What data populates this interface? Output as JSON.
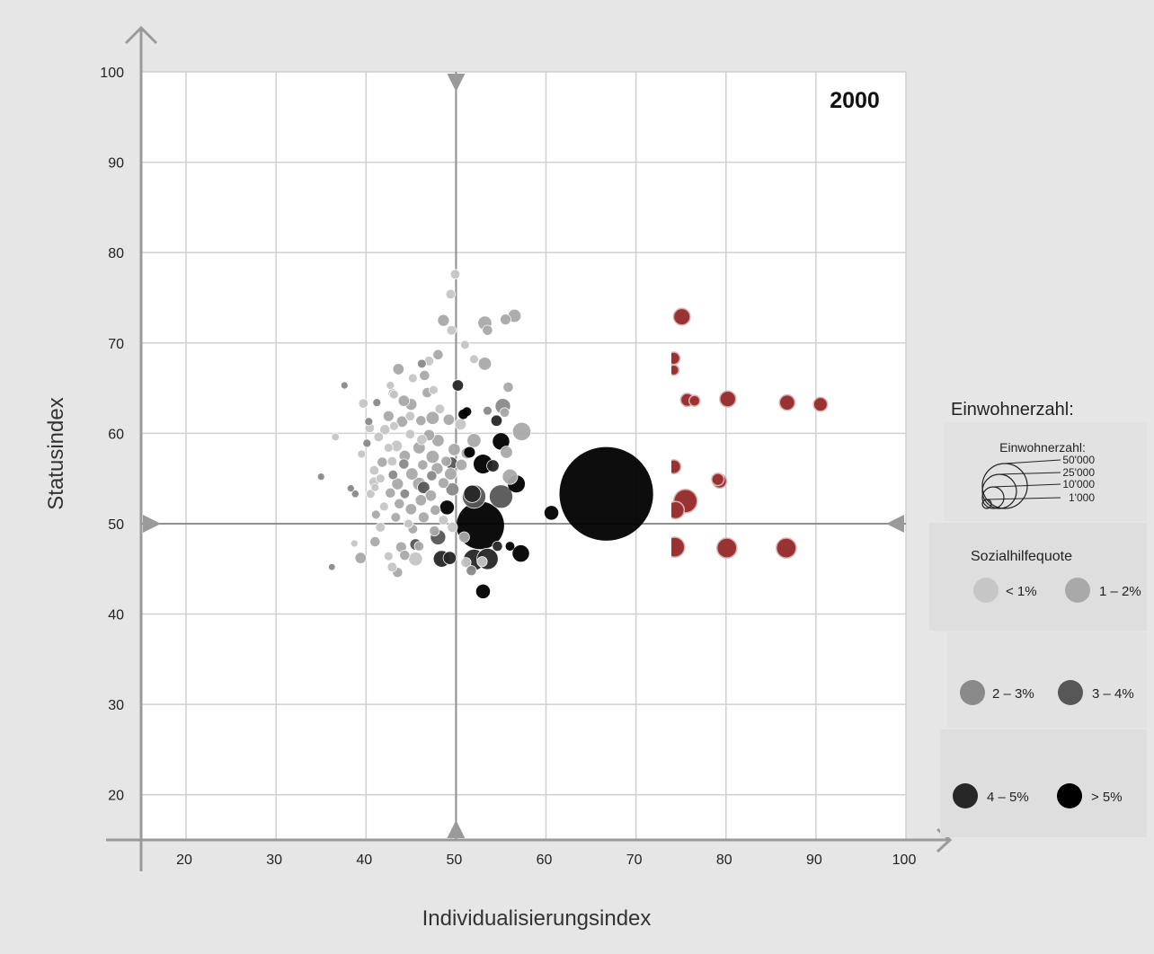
{
  "chart_data": {
    "type": "scatter",
    "title": "2000",
    "xlabel": "Individualisierungsindex",
    "ylabel": "Statusindex",
    "xlim": [
      15,
      100
    ],
    "ylim": [
      15,
      100
    ],
    "x_ticks": [
      20,
      30,
      40,
      50,
      60,
      70,
      80,
      90,
      100
    ],
    "y_ticks": [
      20,
      30,
      40,
      50,
      60,
      70,
      80,
      90,
      100
    ],
    "grid": true,
    "reference_lines": {
      "x": 50,
      "y": 50
    },
    "colors": {
      "lt1": "#c6c6c6",
      "p1_2": "#a9a9a9",
      "p2_3": "#8a8a8a",
      "p3_4": "#575757",
      "p4_5": "#272727",
      "gt5": "#000000",
      "red": "#993333"
    },
    "legend": {
      "outer_title": "Einwohnerzahl:",
      "size_title": "Einwohnerzahl:",
      "size_values": [
        "50'000",
        "25'000",
        "10'000",
        "1'000"
      ],
      "color_title": "Sozialhilfequote",
      "color_items": [
        {
          "label": "< 1%",
          "key": "lt1"
        },
        {
          "label": "1 – 2%",
          "key": "p1_2"
        },
        {
          "label": "2 – 3%",
          "key": "p2_3"
        },
        {
          "label": "3 – 4%",
          "key": "p3_4"
        },
        {
          "label": "4 – 5%",
          "key": "p4_5"
        },
        {
          "label": "> 5%",
          "key": "gt5"
        }
      ]
    },
    "points": [
      {
        "x": 66.7,
        "y": 53.3,
        "size": 50000,
        "cat": "gt5"
      },
      {
        "x": 52.7,
        "y": 49.8,
        "size": 12000,
        "cat": "gt5"
      },
      {
        "x": 55,
        "y": 53,
        "size": 2500,
        "cat": "p3_4"
      },
      {
        "x": 52,
        "y": 53,
        "size": 2500,
        "cat": "p3_4"
      },
      {
        "x": 53,
        "y": 56.6,
        "size": 1500,
        "cat": "gt5"
      },
      {
        "x": 56.7,
        "y": 54.4,
        "size": 1200,
        "cat": "gt5"
      },
      {
        "x": 55,
        "y": 59.1,
        "size": 1100,
        "cat": "gt5"
      },
      {
        "x": 52,
        "y": 46,
        "size": 2000,
        "cat": "p4_5"
      },
      {
        "x": 53.5,
        "y": 46.1,
        "size": 2000,
        "cat": "p4_5"
      },
      {
        "x": 57.2,
        "y": 46.7,
        "size": 1100,
        "cat": "gt5"
      },
      {
        "x": 53,
        "y": 42.5,
        "size": 700,
        "cat": "gt5"
      },
      {
        "x": 60.6,
        "y": 51.2,
        "size": 700,
        "cat": "gt5"
      },
      {
        "x": 49,
        "y": 51.8,
        "size": 700,
        "cat": "gt5"
      },
      {
        "x": 48.4,
        "y": 46.1,
        "size": 1100,
        "cat": "p4_5"
      },
      {
        "x": 48,
        "y": 48.5,
        "size": 900,
        "cat": "p3_4"
      },
      {
        "x": 49.3,
        "y": 46.2,
        "size": 600,
        "cat": "p4_5"
      },
      {
        "x": 54.1,
        "y": 56.4,
        "size": 500,
        "cat": "p4_5"
      },
      {
        "x": 51.8,
        "y": 53.3,
        "size": 1200,
        "cat": "p4_5"
      },
      {
        "x": 54.5,
        "y": 61.4,
        "size": 400,
        "cat": "p4_5"
      },
      {
        "x": 50.2,
        "y": 65.3,
        "size": 400,
        "cat": "p4_5"
      },
      {
        "x": 50.8,
        "y": 62.1,
        "size": 250,
        "cat": "gt5"
      },
      {
        "x": 51.2,
        "y": 62.4,
        "size": 200,
        "cat": "gt5"
      },
      {
        "x": 49.5,
        "y": 56.7,
        "size": 500,
        "cat": "p3_4"
      },
      {
        "x": 46.4,
        "y": 54,
        "size": 500,
        "cat": "p3_4"
      },
      {
        "x": 45.5,
        "y": 47.7,
        "size": 400,
        "cat": "p3_4"
      },
      {
        "x": 49.6,
        "y": 53.8,
        "size": 600,
        "cat": "p2_3"
      },
      {
        "x": 51.5,
        "y": 57.9,
        "size": 350,
        "cat": "gt5"
      },
      {
        "x": 54.6,
        "y": 47.5,
        "size": 300,
        "cat": "p4_5"
      },
      {
        "x": 56,
        "y": 47.5,
        "size": 200,
        "cat": "gt5"
      },
      {
        "x": 57.3,
        "y": 60.2,
        "size": 1400,
        "cat": "p1_2"
      },
      {
        "x": 55.2,
        "y": 63,
        "size": 900,
        "cat": "p2_3"
      },
      {
        "x": 56.5,
        "y": 73,
        "size": 600,
        "cat": "p1_2"
      },
      {
        "x": 55.5,
        "y": 72.6,
        "size": 350,
        "cat": "p1_2"
      },
      {
        "x": 53.2,
        "y": 72.2,
        "size": 700,
        "cat": "p1_2"
      },
      {
        "x": 53.5,
        "y": 71.4,
        "size": 300,
        "cat": "p1_2"
      },
      {
        "x": 53.2,
        "y": 67.7,
        "size": 600,
        "cat": "p1_2"
      },
      {
        "x": 52,
        "y": 68.2,
        "size": 200,
        "cat": "lt1"
      },
      {
        "x": 49.9,
        "y": 77.6,
        "size": 250,
        "cat": "lt1"
      },
      {
        "x": 49.4,
        "y": 75.4,
        "size": 250,
        "cat": "lt1"
      },
      {
        "x": 48.6,
        "y": 72.5,
        "size": 450,
        "cat": "p1_2"
      },
      {
        "x": 49.5,
        "y": 71.4,
        "size": 250,
        "cat": "lt1"
      },
      {
        "x": 51,
        "y": 69.8,
        "size": 200,
        "cat": "lt1"
      },
      {
        "x": 48,
        "y": 68.7,
        "size": 300,
        "cat": "p1_2"
      },
      {
        "x": 47,
        "y": 68,
        "size": 250,
        "cat": "lt1"
      },
      {
        "x": 46.2,
        "y": 67.7,
        "size": 200,
        "cat": "p2_3"
      },
      {
        "x": 43.6,
        "y": 67.1,
        "size": 400,
        "cat": "p1_2"
      },
      {
        "x": 46.5,
        "y": 66.4,
        "size": 300,
        "cat": "p1_2"
      },
      {
        "x": 45.2,
        "y": 66.1,
        "size": 200,
        "cat": "lt1"
      },
      {
        "x": 42.7,
        "y": 65.3,
        "size": 150,
        "cat": "lt1"
      },
      {
        "x": 43.1,
        "y": 64.3,
        "size": 200,
        "cat": "lt1"
      },
      {
        "x": 47.5,
        "y": 64.8,
        "size": 200,
        "cat": "lt1"
      },
      {
        "x": 46.8,
        "y": 64.5,
        "size": 300,
        "cat": "p1_2"
      },
      {
        "x": 43,
        "y": 64.4,
        "size": 250,
        "cat": "p1_2"
      },
      {
        "x": 44.2,
        "y": 63.6,
        "size": 400,
        "cat": "p1_2"
      },
      {
        "x": 37.6,
        "y": 65.3,
        "size": 100,
        "cat": "p2_3"
      },
      {
        "x": 41.2,
        "y": 63.4,
        "size": 150,
        "cat": "p2_3"
      },
      {
        "x": 39.7,
        "y": 63.3,
        "size": 250,
        "cat": "lt1"
      },
      {
        "x": 45,
        "y": 63.2,
        "size": 450,
        "cat": "p1_2"
      },
      {
        "x": 48.2,
        "y": 62.7,
        "size": 250,
        "cat": "lt1"
      },
      {
        "x": 55.4,
        "y": 62.3,
        "size": 250,
        "cat": "p1_2"
      },
      {
        "x": 55.8,
        "y": 65.1,
        "size": 300,
        "cat": "p1_2"
      },
      {
        "x": 42.5,
        "y": 61.9,
        "size": 350,
        "cat": "p1_2"
      },
      {
        "x": 44.9,
        "y": 61.9,
        "size": 250,
        "cat": "lt1"
      },
      {
        "x": 47.4,
        "y": 61.7,
        "size": 600,
        "cat": "p1_2"
      },
      {
        "x": 46.1,
        "y": 61.4,
        "size": 300,
        "cat": "p1_2"
      },
      {
        "x": 44,
        "y": 61.3,
        "size": 400,
        "cat": "p1_2"
      },
      {
        "x": 49.2,
        "y": 61.5,
        "size": 400,
        "cat": "p1_2"
      },
      {
        "x": 40.3,
        "y": 61.3,
        "size": 150,
        "cat": "p2_3"
      },
      {
        "x": 43.1,
        "y": 60.8,
        "size": 200,
        "cat": "lt1"
      },
      {
        "x": 50.5,
        "y": 61,
        "size": 400,
        "cat": "lt1"
      },
      {
        "x": 40.4,
        "y": 60.6,
        "size": 250,
        "cat": "lt1"
      },
      {
        "x": 42.1,
        "y": 60.4,
        "size": 300,
        "cat": "lt1"
      },
      {
        "x": 44.9,
        "y": 59.9,
        "size": 250,
        "cat": "lt1"
      },
      {
        "x": 47,
        "y": 59.8,
        "size": 400,
        "cat": "p1_2"
      },
      {
        "x": 41.4,
        "y": 59.6,
        "size": 250,
        "cat": "lt1"
      },
      {
        "x": 36.6,
        "y": 59.6,
        "size": 120,
        "cat": "lt1"
      },
      {
        "x": 46.2,
        "y": 59.3,
        "size": 300,
        "cat": "lt1"
      },
      {
        "x": 48,
        "y": 59.2,
        "size": 500,
        "cat": "p1_2"
      },
      {
        "x": 52,
        "y": 59.2,
        "size": 700,
        "cat": "p1_2"
      },
      {
        "x": 40.1,
        "y": 58.9,
        "size": 150,
        "cat": "p2_3"
      },
      {
        "x": 43.4,
        "y": 58.6,
        "size": 400,
        "cat": "lt1"
      },
      {
        "x": 42.5,
        "y": 58.4,
        "size": 200,
        "cat": "lt1"
      },
      {
        "x": 45.9,
        "y": 58.4,
        "size": 500,
        "cat": "p1_2"
      },
      {
        "x": 49.8,
        "y": 58.2,
        "size": 500,
        "cat": "p1_2"
      },
      {
        "x": 51.2,
        "y": 57.8,
        "size": 400,
        "cat": "p1_2"
      },
      {
        "x": 55.6,
        "y": 57.9,
        "size": 500,
        "cat": "p1_2"
      },
      {
        "x": 39.5,
        "y": 57.7,
        "size": 150,
        "cat": "lt1"
      },
      {
        "x": 44.3,
        "y": 57.5,
        "size": 400,
        "cat": "p1_2"
      },
      {
        "x": 47.4,
        "y": 57.4,
        "size": 600,
        "cat": "p1_2"
      },
      {
        "x": 42.9,
        "y": 56.9,
        "size": 250,
        "cat": "lt1"
      },
      {
        "x": 41.8,
        "y": 56.8,
        "size": 300,
        "cat": "p1_2"
      },
      {
        "x": 48.9,
        "y": 56.9,
        "size": 300,
        "cat": "p1_2"
      },
      {
        "x": 44.2,
        "y": 56.6,
        "size": 300,
        "cat": "p2_3"
      },
      {
        "x": 46.3,
        "y": 56.5,
        "size": 300,
        "cat": "p1_2"
      },
      {
        "x": 50.6,
        "y": 56.5,
        "size": 400,
        "cat": "p1_2"
      },
      {
        "x": 47.9,
        "y": 56.1,
        "size": 450,
        "cat": "p1_2"
      },
      {
        "x": 40.9,
        "y": 55.9,
        "size": 250,
        "cat": "lt1"
      },
      {
        "x": 45.1,
        "y": 55.5,
        "size": 500,
        "cat": "p1_2"
      },
      {
        "x": 43,
        "y": 55.4,
        "size": 250,
        "cat": "p2_3"
      },
      {
        "x": 49.4,
        "y": 55.5,
        "size": 500,
        "cat": "p1_2"
      },
      {
        "x": 56,
        "y": 55.2,
        "size": 900,
        "cat": "p1_2"
      },
      {
        "x": 35,
        "y": 55.2,
        "size": 100,
        "cat": "p2_3"
      },
      {
        "x": 41.6,
        "y": 55,
        "size": 200,
        "cat": "lt1"
      },
      {
        "x": 47.3,
        "y": 55.3,
        "size": 300,
        "cat": "p2_3"
      },
      {
        "x": 40.9,
        "y": 54.6,
        "size": 300,
        "cat": "lt1"
      },
      {
        "x": 43.5,
        "y": 54.4,
        "size": 450,
        "cat": "p1_2"
      },
      {
        "x": 45.9,
        "y": 54.4,
        "size": 600,
        "cat": "p1_2"
      },
      {
        "x": 48.6,
        "y": 54.5,
        "size": 350,
        "cat": "p1_2"
      },
      {
        "x": 41,
        "y": 54,
        "size": 150,
        "cat": "lt1"
      },
      {
        "x": 38.3,
        "y": 53.9,
        "size": 100,
        "cat": "p2_3"
      },
      {
        "x": 40.5,
        "y": 53.3,
        "size": 200,
        "cat": "lt1"
      },
      {
        "x": 42.7,
        "y": 53.4,
        "size": 300,
        "cat": "p1_2"
      },
      {
        "x": 44.3,
        "y": 53.3,
        "size": 250,
        "cat": "p2_3"
      },
      {
        "x": 47.2,
        "y": 53.1,
        "size": 400,
        "cat": "p1_2"
      },
      {
        "x": 38.8,
        "y": 53.3,
        "size": 120,
        "cat": "p2_3"
      },
      {
        "x": 46.1,
        "y": 52.6,
        "size": 400,
        "cat": "p1_2"
      },
      {
        "x": 43.7,
        "y": 52.2,
        "size": 300,
        "cat": "p1_2"
      },
      {
        "x": 42,
        "y": 51.9,
        "size": 200,
        "cat": "lt1"
      },
      {
        "x": 45,
        "y": 51.6,
        "size": 400,
        "cat": "p1_2"
      },
      {
        "x": 47.7,
        "y": 51.5,
        "size": 300,
        "cat": "p1_2"
      },
      {
        "x": 41.1,
        "y": 51,
        "size": 200,
        "cat": "p1_2"
      },
      {
        "x": 43.3,
        "y": 50.7,
        "size": 250,
        "cat": "p1_2"
      },
      {
        "x": 46.4,
        "y": 50.7,
        "size": 350,
        "cat": "p1_2"
      },
      {
        "x": 48.6,
        "y": 50.4,
        "size": 250,
        "cat": "lt1"
      },
      {
        "x": 44.7,
        "y": 50,
        "size": 200,
        "cat": "lt1"
      },
      {
        "x": 41.6,
        "y": 49.6,
        "size": 250,
        "cat": "lt1"
      },
      {
        "x": 45.2,
        "y": 49.4,
        "size": 250,
        "cat": "p1_2"
      },
      {
        "x": 47.6,
        "y": 49.2,
        "size": 300,
        "cat": "p1_2"
      },
      {
        "x": 38.7,
        "y": 47.8,
        "size": 100,
        "cat": "lt1"
      },
      {
        "x": 41,
        "y": 48,
        "size": 300,
        "cat": "p1_2"
      },
      {
        "x": 43.9,
        "y": 47.4,
        "size": 350,
        "cat": "p1_2"
      },
      {
        "x": 45.9,
        "y": 47.5,
        "size": 250,
        "cat": "p1_2"
      },
      {
        "x": 39.4,
        "y": 46.2,
        "size": 400,
        "cat": "p1_2"
      },
      {
        "x": 42.5,
        "y": 46.4,
        "size": 200,
        "cat": "lt1"
      },
      {
        "x": 44.3,
        "y": 46.5,
        "size": 300,
        "cat": "p1_2"
      },
      {
        "x": 45.5,
        "y": 46.1,
        "size": 700,
        "cat": "lt1"
      },
      {
        "x": 43.5,
        "y": 44.6,
        "size": 300,
        "cat": "p1_2"
      },
      {
        "x": 42.9,
        "y": 45.2,
        "size": 250,
        "cat": "lt1"
      },
      {
        "x": 36.2,
        "y": 45.2,
        "size": 80,
        "cat": "p2_3"
      },
      {
        "x": 50.9,
        "y": 48.5,
        "size": 350,
        "cat": "p1_2"
      },
      {
        "x": 49.6,
        "y": 49.6,
        "size": 300,
        "cat": "lt1"
      },
      {
        "x": 52.9,
        "y": 45.8,
        "size": 300,
        "cat": "lt1"
      },
      {
        "x": 51.1,
        "y": 45.7,
        "size": 300,
        "cat": "lt1"
      },
      {
        "x": 51.7,
        "y": 44.8,
        "size": 300,
        "cat": "p2_3"
      },
      {
        "x": 53.5,
        "y": 62.5,
        "size": 200,
        "cat": "p2_3"
      },
      {
        "x": 75.1,
        "y": 72.9,
        "size": 1100,
        "cat": "red"
      },
      {
        "x": 74.2,
        "y": 68.3,
        "size": 500,
        "cat": "red"
      },
      {
        "x": 74.2,
        "y": 67,
        "size": 300,
        "cat": "red"
      },
      {
        "x": 75.7,
        "y": 63.7,
        "size": 600,
        "cat": "red"
      },
      {
        "x": 76.5,
        "y": 63.6,
        "size": 350,
        "cat": "red"
      },
      {
        "x": 80.2,
        "y": 63.8,
        "size": 1000,
        "cat": "red"
      },
      {
        "x": 86.8,
        "y": 63.4,
        "size": 900,
        "cat": "red"
      },
      {
        "x": 90.5,
        "y": 63.2,
        "size": 700,
        "cat": "red"
      },
      {
        "x": 74.2,
        "y": 56.3,
        "size": 700,
        "cat": "red"
      },
      {
        "x": 79.1,
        "y": 54.9,
        "size": 500,
        "cat": "red"
      },
      {
        "x": 79.3,
        "y": 54.7,
        "size": 700,
        "cat": "red"
      },
      {
        "x": 75.5,
        "y": 52.5,
        "size": 2500,
        "cat": "red"
      },
      {
        "x": 74.4,
        "y": 51.5,
        "size": 1200,
        "cat": "red"
      },
      {
        "x": 74.3,
        "y": 47.4,
        "size": 1700,
        "cat": "red"
      },
      {
        "x": 80.1,
        "y": 47.3,
        "size": 1700,
        "cat": "red"
      },
      {
        "x": 86.7,
        "y": 47.3,
        "size": 1700,
        "cat": "red"
      }
    ]
  }
}
